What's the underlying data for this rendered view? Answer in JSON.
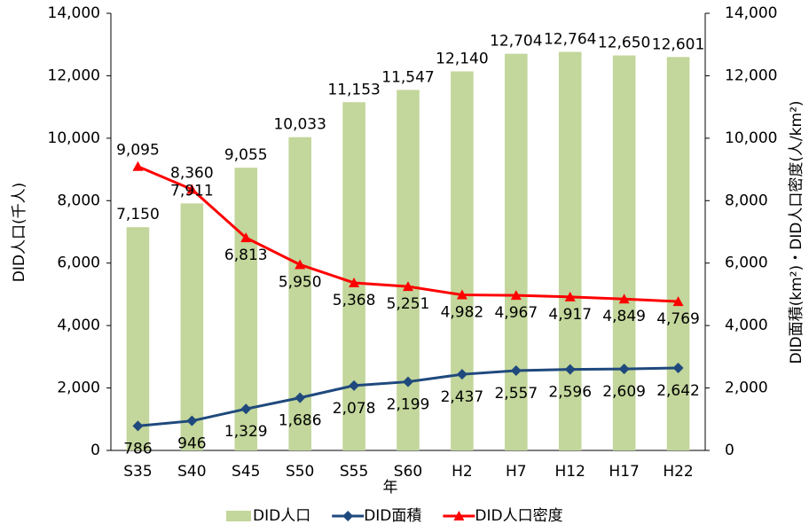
{
  "chart_data": {
    "type": "bar",
    "categories": [
      "S35",
      "S40",
      "S45",
      "S50",
      "S55",
      "S60",
      "H2",
      "H7",
      "H12",
      "H17",
      "H22"
    ],
    "x_label": "年",
    "y_label": "DID人口(千人)",
    "y2_label": "DID面積(km²)・DID人口密度(人/km²)",
    "series": [
      {
        "name": "DID人口",
        "type": "bar",
        "color": "#c3d69b",
        "values": [
          7150,
          7911,
          9055,
          10033,
          11153,
          11547,
          12140,
          12704,
          12764,
          12650,
          12601
        ],
        "value_labels": [
          "7,150",
          "7,911",
          "9,055",
          "10,033",
          "11,153",
          "11,547",
          "12,140",
          "12,704",
          "12,764",
          "12,650",
          "12,601"
        ]
      },
      {
        "name": "DID面積",
        "type": "line",
        "marker": "diamond",
        "axis": "y2",
        "color": "#1f497d",
        "values": [
          786,
          946,
          1329,
          1686,
          2078,
          2199,
          2437,
          2557,
          2596,
          2609,
          2642
        ],
        "value_labels": [
          "786",
          "946",
          "1,329",
          "1,686",
          "2,078",
          "2,199",
          "2,437",
          "2,557",
          "2,596",
          "2,609",
          "2,642"
        ]
      },
      {
        "name": "DID人口密度",
        "type": "line",
        "marker": "triangle",
        "axis": "y2",
        "color": "#ff0000",
        "values": [
          9095,
          8360,
          6813,
          5950,
          5368,
          5251,
          4982,
          4967,
          4917,
          4849,
          4769
        ],
        "value_labels": [
          "9,095",
          "8,360",
          "6,813",
          "5,950",
          "5,368",
          "5,251",
          "4,982",
          "4,967",
          "4,917",
          "4,849",
          "4,769"
        ]
      }
    ],
    "ylim": [
      0,
      14000
    ],
    "yticks": [
      0,
      {
        "value": 2000,
        "label": "2,000"
      },
      {
        "value": 4000,
        "label": "4,000"
      },
      {
        "value": 6000,
        "label": "6,000"
      },
      {
        "value": 8000,
        "label": "8,000"
      },
      {
        "value": 10000,
        "label": "10,000"
      },
      {
        "value": 12000,
        "label": "12,000"
      },
      {
        "value": 14000,
        "label": "14,000"
      }
    ],
    "y2lim": [
      0,
      14000
    ],
    "y2ticks": [
      0,
      {
        "value": 2000,
        "label": "2,000"
      },
      {
        "value": 4000,
        "label": "4,000"
      },
      {
        "value": 6000,
        "label": "6,000"
      },
      {
        "value": 8000,
        "label": "8,000"
      },
      {
        "value": 10000,
        "label": "10,000"
      },
      {
        "value": 12000,
        "label": "12,000"
      },
      {
        "value": 14000,
        "label": "14,000"
      }
    ],
    "legend": "bottom"
  }
}
